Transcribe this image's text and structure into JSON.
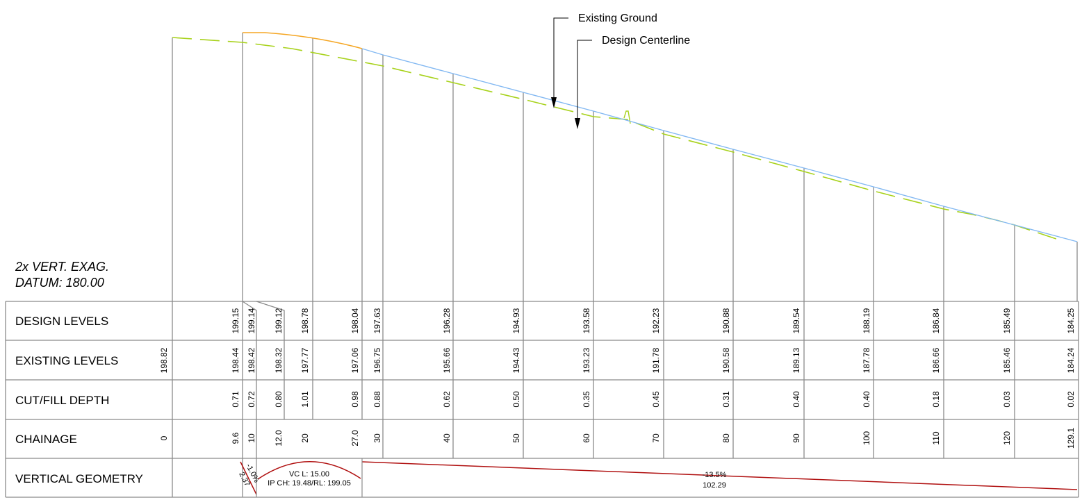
{
  "notes": {
    "vert_exag": "2x VERT. EXAG.",
    "datum": "DATUM: 180.00"
  },
  "callouts": {
    "existing_ground": "Existing Ground",
    "design_centerline": "Design Centerline"
  },
  "rows": {
    "design_levels": "DESIGN LEVELS",
    "existing_levels": "EXISTING LEVELS",
    "cut_fill": "CUT/FILL DEPTH",
    "chainage": "CHAINAGE",
    "vertical_geometry": "VERTICAL GEOMETRY"
  },
  "columns": [
    {
      "chainage": "0",
      "design": "",
      "existing": "198.82",
      "cutfill": ""
    },
    {
      "chainage": "9.6",
      "design": "199.15",
      "existing": "198.44",
      "cutfill": "0.71"
    },
    {
      "chainage": "10",
      "design": "199.14",
      "existing": "198.42",
      "cutfill": "0.72"
    },
    {
      "chainage": "12.0",
      "design": "199.12",
      "existing": "198.32",
      "cutfill": "0.80"
    },
    {
      "chainage": "20",
      "design": "198.78",
      "existing": "197.77",
      "cutfill": "1.01"
    },
    {
      "chainage": "27.0",
      "design": "198.04",
      "existing": "197.06",
      "cutfill": "0.98"
    },
    {
      "chainage": "30",
      "design": "197.63",
      "existing": "196.75",
      "cutfill": "0.88"
    },
    {
      "chainage": "40",
      "design": "196.28",
      "existing": "195.66",
      "cutfill": "0.62"
    },
    {
      "chainage": "50",
      "design": "194.93",
      "existing": "194.43",
      "cutfill": "0.50"
    },
    {
      "chainage": "60",
      "design": "193.58",
      "existing": "193.23",
      "cutfill": "0.35"
    },
    {
      "chainage": "70",
      "design": "192.23",
      "existing": "191.78",
      "cutfill": "0.45"
    },
    {
      "chainage": "80",
      "design": "190.88",
      "existing": "190.58",
      "cutfill": "0.31"
    },
    {
      "chainage": "90",
      "design": "189.54",
      "existing": "189.13",
      "cutfill": "0.40"
    },
    {
      "chainage": "100",
      "design": "188.19",
      "existing": "187.78",
      "cutfill": "0.40"
    },
    {
      "chainage": "110",
      "design": "186.84",
      "existing": "186.66",
      "cutfill": "0.18"
    },
    {
      "chainage": "120",
      "design": "185.49",
      "existing": "185.46",
      "cutfill": "0.03"
    },
    {
      "chainage": "129.1",
      "design": "184.25",
      "existing": "184.24",
      "cutfill": "0.02"
    }
  ],
  "vertical_geometry": {
    "grade1_top": "-1.0%",
    "grade1_bottom": "2.37",
    "vc_length": "VC L: 15.00",
    "vc_ip": "IP CH: 19.48/RL: 199.05",
    "grade2_pct": "-13.5%",
    "grade2_len": "102.29"
  },
  "colors": {
    "design_line": "#82b8f2",
    "vertical_curve": "#f5a623",
    "existing_ground": "#a8d21c",
    "grid": "#8a8a8a",
    "geometry": "#b01010"
  }
}
